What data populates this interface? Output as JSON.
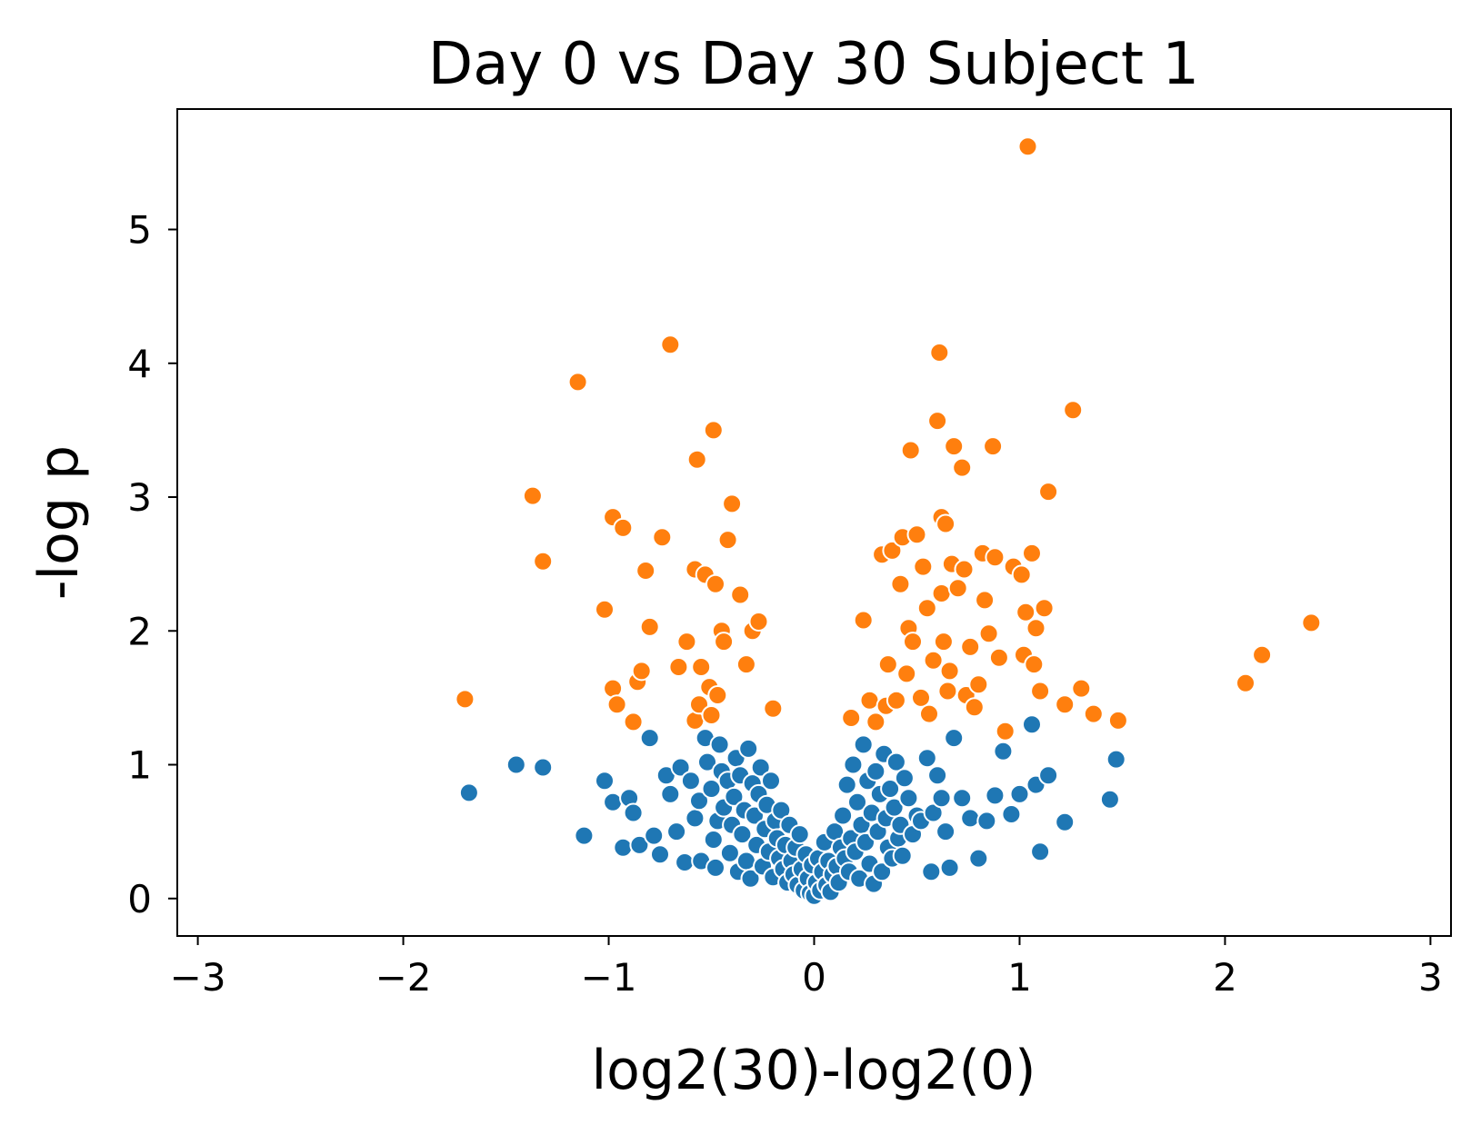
{
  "chart_data": {
    "type": "scatter",
    "title": "Day 0 vs Day 30 Subject 1",
    "xlabel": "log2(30)-log2(0)",
    "ylabel": "-log p",
    "xlim": [
      -3.1,
      3.1
    ],
    "ylim": [
      -0.28,
      5.9
    ],
    "xticks": [
      -3,
      -2,
      -1,
      0,
      1,
      2,
      3
    ],
    "xtick_labels": [
      "−3",
      "−2",
      "−1",
      "0",
      "1",
      "2",
      "3"
    ],
    "yticks": [
      0,
      1,
      2,
      3,
      4,
      5
    ],
    "ytick_labels": [
      "0",
      "1",
      "2",
      "3",
      "4",
      "5"
    ],
    "grid": false,
    "legend": "none",
    "series": [
      {
        "color": "#1f77b4",
        "points": [
          [
            -1.68,
            0.79
          ],
          [
            -1.45,
            1.0
          ],
          [
            -1.32,
            0.98
          ],
          [
            -1.12,
            0.47
          ],
          [
            -1.02,
            0.88
          ],
          [
            -0.98,
            0.72
          ],
          [
            -0.93,
            0.38
          ],
          [
            -0.9,
            0.75
          ],
          [
            -0.88,
            0.64
          ],
          [
            -0.85,
            0.4
          ],
          [
            -0.8,
            1.2
          ],
          [
            -0.78,
            0.47
          ],
          [
            -0.75,
            0.33
          ],
          [
            -0.72,
            0.92
          ],
          [
            -0.7,
            0.78
          ],
          [
            -0.67,
            0.5
          ],
          [
            -0.65,
            0.98
          ],
          [
            -0.63,
            0.27
          ],
          [
            -0.6,
            0.88
          ],
          [
            -0.58,
            0.6
          ],
          [
            -0.56,
            0.73
          ],
          [
            -0.55,
            0.28
          ],
          [
            -0.53,
            1.2
          ],
          [
            -0.52,
            1.02
          ],
          [
            -0.5,
            0.82
          ],
          [
            -0.49,
            0.44
          ],
          [
            -0.48,
            0.23
          ],
          [
            -0.47,
            0.58
          ],
          [
            -0.46,
            1.15
          ],
          [
            -0.45,
            0.95
          ],
          [
            -0.44,
            0.68
          ],
          [
            -0.42,
            0.88
          ],
          [
            -0.41,
            0.34
          ],
          [
            -0.4,
            0.55
          ],
          [
            -0.39,
            0.76
          ],
          [
            -0.38,
            1.05
          ],
          [
            -0.37,
            0.2
          ],
          [
            -0.36,
            0.92
          ],
          [
            -0.35,
            0.48
          ],
          [
            -0.34,
            0.66
          ],
          [
            -0.33,
            0.28
          ],
          [
            -0.32,
            1.12
          ],
          [
            -0.31,
            0.15
          ],
          [
            -0.3,
            0.86
          ],
          [
            -0.29,
            0.62
          ],
          [
            -0.28,
            0.4
          ],
          [
            -0.27,
            0.78
          ],
          [
            -0.26,
            0.98
          ],
          [
            -0.25,
            0.24
          ],
          [
            -0.24,
            0.52
          ],
          [
            -0.23,
            0.7
          ],
          [
            -0.22,
            0.35
          ],
          [
            -0.21,
            0.88
          ],
          [
            -0.2,
            0.16
          ],
          [
            -0.19,
            0.58
          ],
          [
            -0.18,
            0.45
          ],
          [
            -0.17,
            0.3
          ],
          [
            -0.16,
            0.66
          ],
          [
            -0.15,
            0.22
          ],
          [
            -0.14,
            0.4
          ],
          [
            -0.13,
            0.12
          ],
          [
            -0.12,
            0.55
          ],
          [
            -0.11,
            0.28
          ],
          [
            -0.1,
            0.18
          ],
          [
            -0.09,
            0.38
          ],
          [
            -0.08,
            0.1
          ],
          [
            -0.07,
            0.48
          ],
          [
            -0.06,
            0.22
          ],
          [
            -0.05,
            0.06
          ],
          [
            -0.04,
            0.33
          ],
          [
            -0.03,
            0.15
          ],
          [
            -0.02,
            0.04
          ],
          [
            -0.01,
            0.25
          ],
          [
            0.0,
            0.02
          ],
          [
            0.01,
            0.12
          ],
          [
            0.02,
            0.3
          ],
          [
            0.03,
            0.06
          ],
          [
            0.04,
            0.2
          ],
          [
            0.05,
            0.42
          ],
          [
            0.06,
            0.1
          ],
          [
            0.07,
            0.28
          ],
          [
            0.08,
            0.05
          ],
          [
            0.09,
            0.18
          ],
          [
            0.1,
            0.5
          ],
          [
            0.11,
            0.24
          ],
          [
            0.12,
            0.12
          ],
          [
            0.13,
            0.38
          ],
          [
            0.14,
            0.62
          ],
          [
            0.15,
            0.3
          ],
          [
            0.16,
            0.85
          ],
          [
            0.17,
            0.2
          ],
          [
            0.18,
            0.45
          ],
          [
            0.19,
            1.0
          ],
          [
            0.2,
            0.35
          ],
          [
            0.21,
            0.72
          ],
          [
            0.22,
            0.15
          ],
          [
            0.23,
            0.55
          ],
          [
            0.24,
            1.15
          ],
          [
            0.25,
            0.42
          ],
          [
            0.26,
            0.88
          ],
          [
            0.27,
            0.26
          ],
          [
            0.28,
            0.64
          ],
          [
            0.29,
            0.11
          ],
          [
            0.3,
            0.95
          ],
          [
            0.31,
            0.5
          ],
          [
            0.32,
            0.78
          ],
          [
            0.33,
            0.2
          ],
          [
            0.34,
            1.08
          ],
          [
            0.35,
            0.6
          ],
          [
            0.36,
            0.38
          ],
          [
            0.37,
            0.82
          ],
          [
            0.38,
            0.3
          ],
          [
            0.39,
            0.68
          ],
          [
            0.4,
            1.02
          ],
          [
            0.41,
            0.45
          ],
          [
            0.42,
            0.55
          ],
          [
            0.43,
            0.32
          ],
          [
            0.44,
            0.9
          ],
          [
            0.46,
            0.75
          ],
          [
            0.48,
            0.48
          ],
          [
            0.5,
            0.62
          ],
          [
            0.52,
            0.58
          ],
          [
            0.55,
            1.05
          ],
          [
            0.57,
            0.2
          ],
          [
            0.58,
            0.64
          ],
          [
            0.6,
            0.92
          ],
          [
            0.62,
            0.75
          ],
          [
            0.64,
            0.5
          ],
          [
            0.66,
            0.23
          ],
          [
            0.68,
            1.2
          ],
          [
            0.72,
            0.75
          ],
          [
            0.76,
            0.6
          ],
          [
            0.8,
            0.3
          ],
          [
            0.84,
            0.58
          ],
          [
            0.88,
            0.77
          ],
          [
            0.92,
            1.1
          ],
          [
            0.96,
            0.63
          ],
          [
            1.0,
            0.78
          ],
          [
            1.06,
            1.3
          ],
          [
            1.08,
            0.85
          ],
          [
            1.1,
            0.35
          ],
          [
            1.14,
            0.92
          ],
          [
            1.22,
            0.57
          ],
          [
            1.44,
            0.74
          ],
          [
            1.47,
            1.04
          ]
        ]
      },
      {
        "color": "#ff7f0e",
        "points": [
          [
            -1.7,
            1.49
          ],
          [
            -1.37,
            3.01
          ],
          [
            -1.32,
            2.52
          ],
          [
            -1.15,
            3.86
          ],
          [
            -1.02,
            2.16
          ],
          [
            -0.98,
            2.85
          ],
          [
            -0.98,
            1.57
          ],
          [
            -0.96,
            1.45
          ],
          [
            -0.93,
            2.77
          ],
          [
            -0.88,
            1.32
          ],
          [
            -0.86,
            1.62
          ],
          [
            -0.84,
            1.7
          ],
          [
            -0.82,
            2.45
          ],
          [
            -0.8,
            2.03
          ],
          [
            -0.74,
            2.7
          ],
          [
            -0.7,
            4.14
          ],
          [
            -0.66,
            1.73
          ],
          [
            -0.62,
            1.92
          ],
          [
            -0.58,
            1.33
          ],
          [
            -0.58,
            2.46
          ],
          [
            -0.57,
            3.28
          ],
          [
            -0.56,
            1.45
          ],
          [
            -0.55,
            1.73
          ],
          [
            -0.53,
            2.42
          ],
          [
            -0.51,
            1.58
          ],
          [
            -0.5,
            1.37
          ],
          [
            -0.49,
            3.5
          ],
          [
            -0.48,
            2.35
          ],
          [
            -0.47,
            1.52
          ],
          [
            -0.45,
            2.0
          ],
          [
            -0.44,
            1.92
          ],
          [
            -0.42,
            2.68
          ],
          [
            -0.4,
            2.95
          ],
          [
            -0.36,
            2.27
          ],
          [
            -0.33,
            1.75
          ],
          [
            -0.3,
            2.0
          ],
          [
            -0.27,
            2.07
          ],
          [
            -0.2,
            1.42
          ],
          [
            0.18,
            1.35
          ],
          [
            0.24,
            2.08
          ],
          [
            0.27,
            1.48
          ],
          [
            0.3,
            1.32
          ],
          [
            0.33,
            2.57
          ],
          [
            0.35,
            1.44
          ],
          [
            0.36,
            1.75
          ],
          [
            0.38,
            2.6
          ],
          [
            0.4,
            1.48
          ],
          [
            0.42,
            2.35
          ],
          [
            0.43,
            2.7
          ],
          [
            0.45,
            1.68
          ],
          [
            0.46,
            2.02
          ],
          [
            0.47,
            3.35
          ],
          [
            0.48,
            1.92
          ],
          [
            0.5,
            2.72
          ],
          [
            0.52,
            1.5
          ],
          [
            0.53,
            2.48
          ],
          [
            0.55,
            2.17
          ],
          [
            0.56,
            1.38
          ],
          [
            0.58,
            1.78
          ],
          [
            0.6,
            3.57
          ],
          [
            0.61,
            4.08
          ],
          [
            0.62,
            2.85
          ],
          [
            0.62,
            2.28
          ],
          [
            0.63,
            1.92
          ],
          [
            0.64,
            2.8
          ],
          [
            0.65,
            1.55
          ],
          [
            0.66,
            1.7
          ],
          [
            0.67,
            2.5
          ],
          [
            0.68,
            3.38
          ],
          [
            0.7,
            2.32
          ],
          [
            0.72,
            3.22
          ],
          [
            0.73,
            2.46
          ],
          [
            0.74,
            1.52
          ],
          [
            0.76,
            1.88
          ],
          [
            0.78,
            1.43
          ],
          [
            0.8,
            1.6
          ],
          [
            0.82,
            2.58
          ],
          [
            0.83,
            2.23
          ],
          [
            0.85,
            1.98
          ],
          [
            0.87,
            3.38
          ],
          [
            0.88,
            2.55
          ],
          [
            0.9,
            1.8
          ],
          [
            0.93,
            1.25
          ],
          [
            0.97,
            2.48
          ],
          [
            1.01,
            2.42
          ],
          [
            1.02,
            1.82
          ],
          [
            1.03,
            2.14
          ],
          [
            1.04,
            5.62
          ],
          [
            1.06,
            2.58
          ],
          [
            1.07,
            1.75
          ],
          [
            1.08,
            2.02
          ],
          [
            1.1,
            1.55
          ],
          [
            1.12,
            2.17
          ],
          [
            1.14,
            3.04
          ],
          [
            1.22,
            1.45
          ],
          [
            1.26,
            3.65
          ],
          [
            1.3,
            1.57
          ],
          [
            1.36,
            1.38
          ],
          [
            1.48,
            1.33
          ],
          [
            2.1,
            1.61
          ],
          [
            2.18,
            1.82
          ],
          [
            2.42,
            2.06
          ]
        ]
      }
    ]
  }
}
